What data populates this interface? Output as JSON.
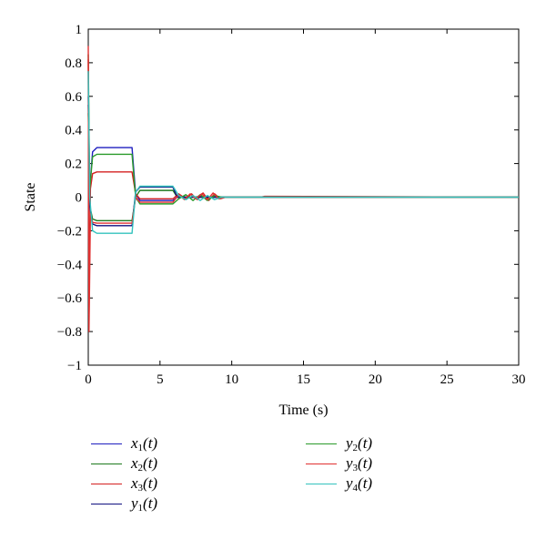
{
  "chart_data": {
    "type": "line",
    "xlabel": "Time (s)",
    "ylabel": "State",
    "xlim": [
      0,
      30
    ],
    "ylim": [
      -1,
      1
    ],
    "xticks": [
      "0",
      "5",
      "10",
      "15",
      "20",
      "25",
      "30"
    ],
    "yticks": [
      "1",
      "0.8",
      "0.6",
      "0.4",
      "0.2",
      "0",
      "−0.2",
      "−0.4",
      "−0.6",
      "−0.8",
      "−1"
    ],
    "grid": false,
    "legend_position": "below",
    "series": [
      {
        "name": "x1(t)",
        "base": "x",
        "sub": "1",
        "color": "#1f1fbf",
        "points": [
          [
            0,
            0.6
          ],
          [
            0.1,
            0.05
          ],
          [
            0.3,
            0.27
          ],
          [
            0.6,
            0.295
          ],
          [
            3.05,
            0.295
          ],
          [
            3.3,
            0.02
          ],
          [
            3.6,
            -0.02
          ],
          [
            5.9,
            -0.02
          ],
          [
            6.2,
            0.0
          ],
          [
            9.5,
            0.0
          ],
          [
            30,
            0.0
          ]
        ]
      },
      {
        "name": "x2(t)",
        "base": "x",
        "sub": "2",
        "color": "#1e7a1e",
        "points": [
          [
            0,
            0.85
          ],
          [
            0.1,
            -0.05
          ],
          [
            0.3,
            -0.13
          ],
          [
            0.6,
            -0.14
          ],
          [
            3.05,
            -0.14
          ],
          [
            3.3,
            0.0
          ],
          [
            3.6,
            0.04
          ],
          [
            5.9,
            0.04
          ],
          [
            6.2,
            0.0
          ],
          [
            9.5,
            0.0
          ],
          [
            30,
            0.0
          ]
        ]
      },
      {
        "name": "x3(t)",
        "base": "x",
        "sub": "3",
        "color": "#d42020",
        "points": [
          [
            0,
            0.82
          ],
          [
            0.05,
            -0.7
          ],
          [
            0.15,
            0.05
          ],
          [
            0.3,
            0.14
          ],
          [
            0.6,
            0.15
          ],
          [
            3.05,
            0.15
          ],
          [
            3.3,
            0.02
          ],
          [
            3.6,
            -0.01
          ],
          [
            5.9,
            -0.01
          ],
          [
            6.3,
            0.02
          ],
          [
            6.8,
            -0.01
          ],
          [
            7.2,
            0.02
          ],
          [
            7.6,
            -0.015
          ],
          [
            8.0,
            0.025
          ],
          [
            8.4,
            -0.02
          ],
          [
            8.8,
            0.02
          ],
          [
            9.2,
            -0.01
          ],
          [
            9.6,
            0.0
          ],
          [
            12,
            0.0
          ],
          [
            12.3,
            0.005
          ],
          [
            30,
            0.0
          ]
        ]
      },
      {
        "name": "y1(t)",
        "base": "y",
        "sub": "1",
        "color": "#101080",
        "points": [
          [
            0,
            0.55
          ],
          [
            0.1,
            -0.05
          ],
          [
            0.3,
            -0.16
          ],
          [
            0.6,
            -0.17
          ],
          [
            3.05,
            -0.17
          ],
          [
            3.3,
            0.03
          ],
          [
            3.6,
            0.06
          ],
          [
            5.9,
            0.06
          ],
          [
            6.2,
            0.0
          ],
          [
            9.5,
            0.0
          ],
          [
            30,
            0.0
          ]
        ]
      },
      {
        "name": "y2(t)",
        "base": "y",
        "sub": "2",
        "color": "#2a9a2a",
        "points": [
          [
            0,
            0.5
          ],
          [
            0.1,
            0.05
          ],
          [
            0.3,
            0.24
          ],
          [
            0.6,
            0.255
          ],
          [
            3.05,
            0.255
          ],
          [
            3.3,
            0.0
          ],
          [
            3.6,
            -0.04
          ],
          [
            5.9,
            -0.04
          ],
          [
            6.3,
            -0.01
          ],
          [
            6.8,
            0.015
          ],
          [
            7.3,
            -0.02
          ],
          [
            7.8,
            0.015
          ],
          [
            8.3,
            -0.02
          ],
          [
            8.8,
            0.01
          ],
          [
            9.3,
            0.0
          ],
          [
            30,
            0.0
          ]
        ]
      },
      {
        "name": "y3(t)",
        "base": "y",
        "sub": "3",
        "color": "#e03030",
        "points": [
          [
            0,
            0.9
          ],
          [
            0.05,
            -0.8
          ],
          [
            0.15,
            -0.1
          ],
          [
            0.3,
            -0.15
          ],
          [
            0.6,
            -0.155
          ],
          [
            3.05,
            -0.155
          ],
          [
            3.3,
            0.0
          ],
          [
            3.6,
            -0.03
          ],
          [
            5.9,
            -0.03
          ],
          [
            6.3,
            0.015
          ],
          [
            6.7,
            -0.015
          ],
          [
            7.1,
            0.02
          ],
          [
            7.5,
            -0.01
          ],
          [
            7.9,
            0.02
          ],
          [
            8.3,
            -0.015
          ],
          [
            8.7,
            0.025
          ],
          [
            9.1,
            -0.01
          ],
          [
            9.5,
            0.0
          ],
          [
            30,
            0.0
          ]
        ]
      },
      {
        "name": "y4(t)",
        "base": "y",
        "sub": "4",
        "color": "#33c2bd",
        "points": [
          [
            0,
            0.75
          ],
          [
            0.1,
            0.0
          ],
          [
            0.3,
            -0.2
          ],
          [
            0.6,
            -0.215
          ],
          [
            3.05,
            -0.215
          ],
          [
            3.3,
            0.03
          ],
          [
            3.6,
            0.065
          ],
          [
            5.9,
            0.065
          ],
          [
            6.3,
            0.01
          ],
          [
            6.8,
            -0.015
          ],
          [
            7.3,
            0.01
          ],
          [
            7.8,
            -0.02
          ],
          [
            8.3,
            0.01
          ],
          [
            8.8,
            -0.015
          ],
          [
            9.3,
            0.0
          ],
          [
            30,
            0.0
          ]
        ]
      }
    ]
  }
}
